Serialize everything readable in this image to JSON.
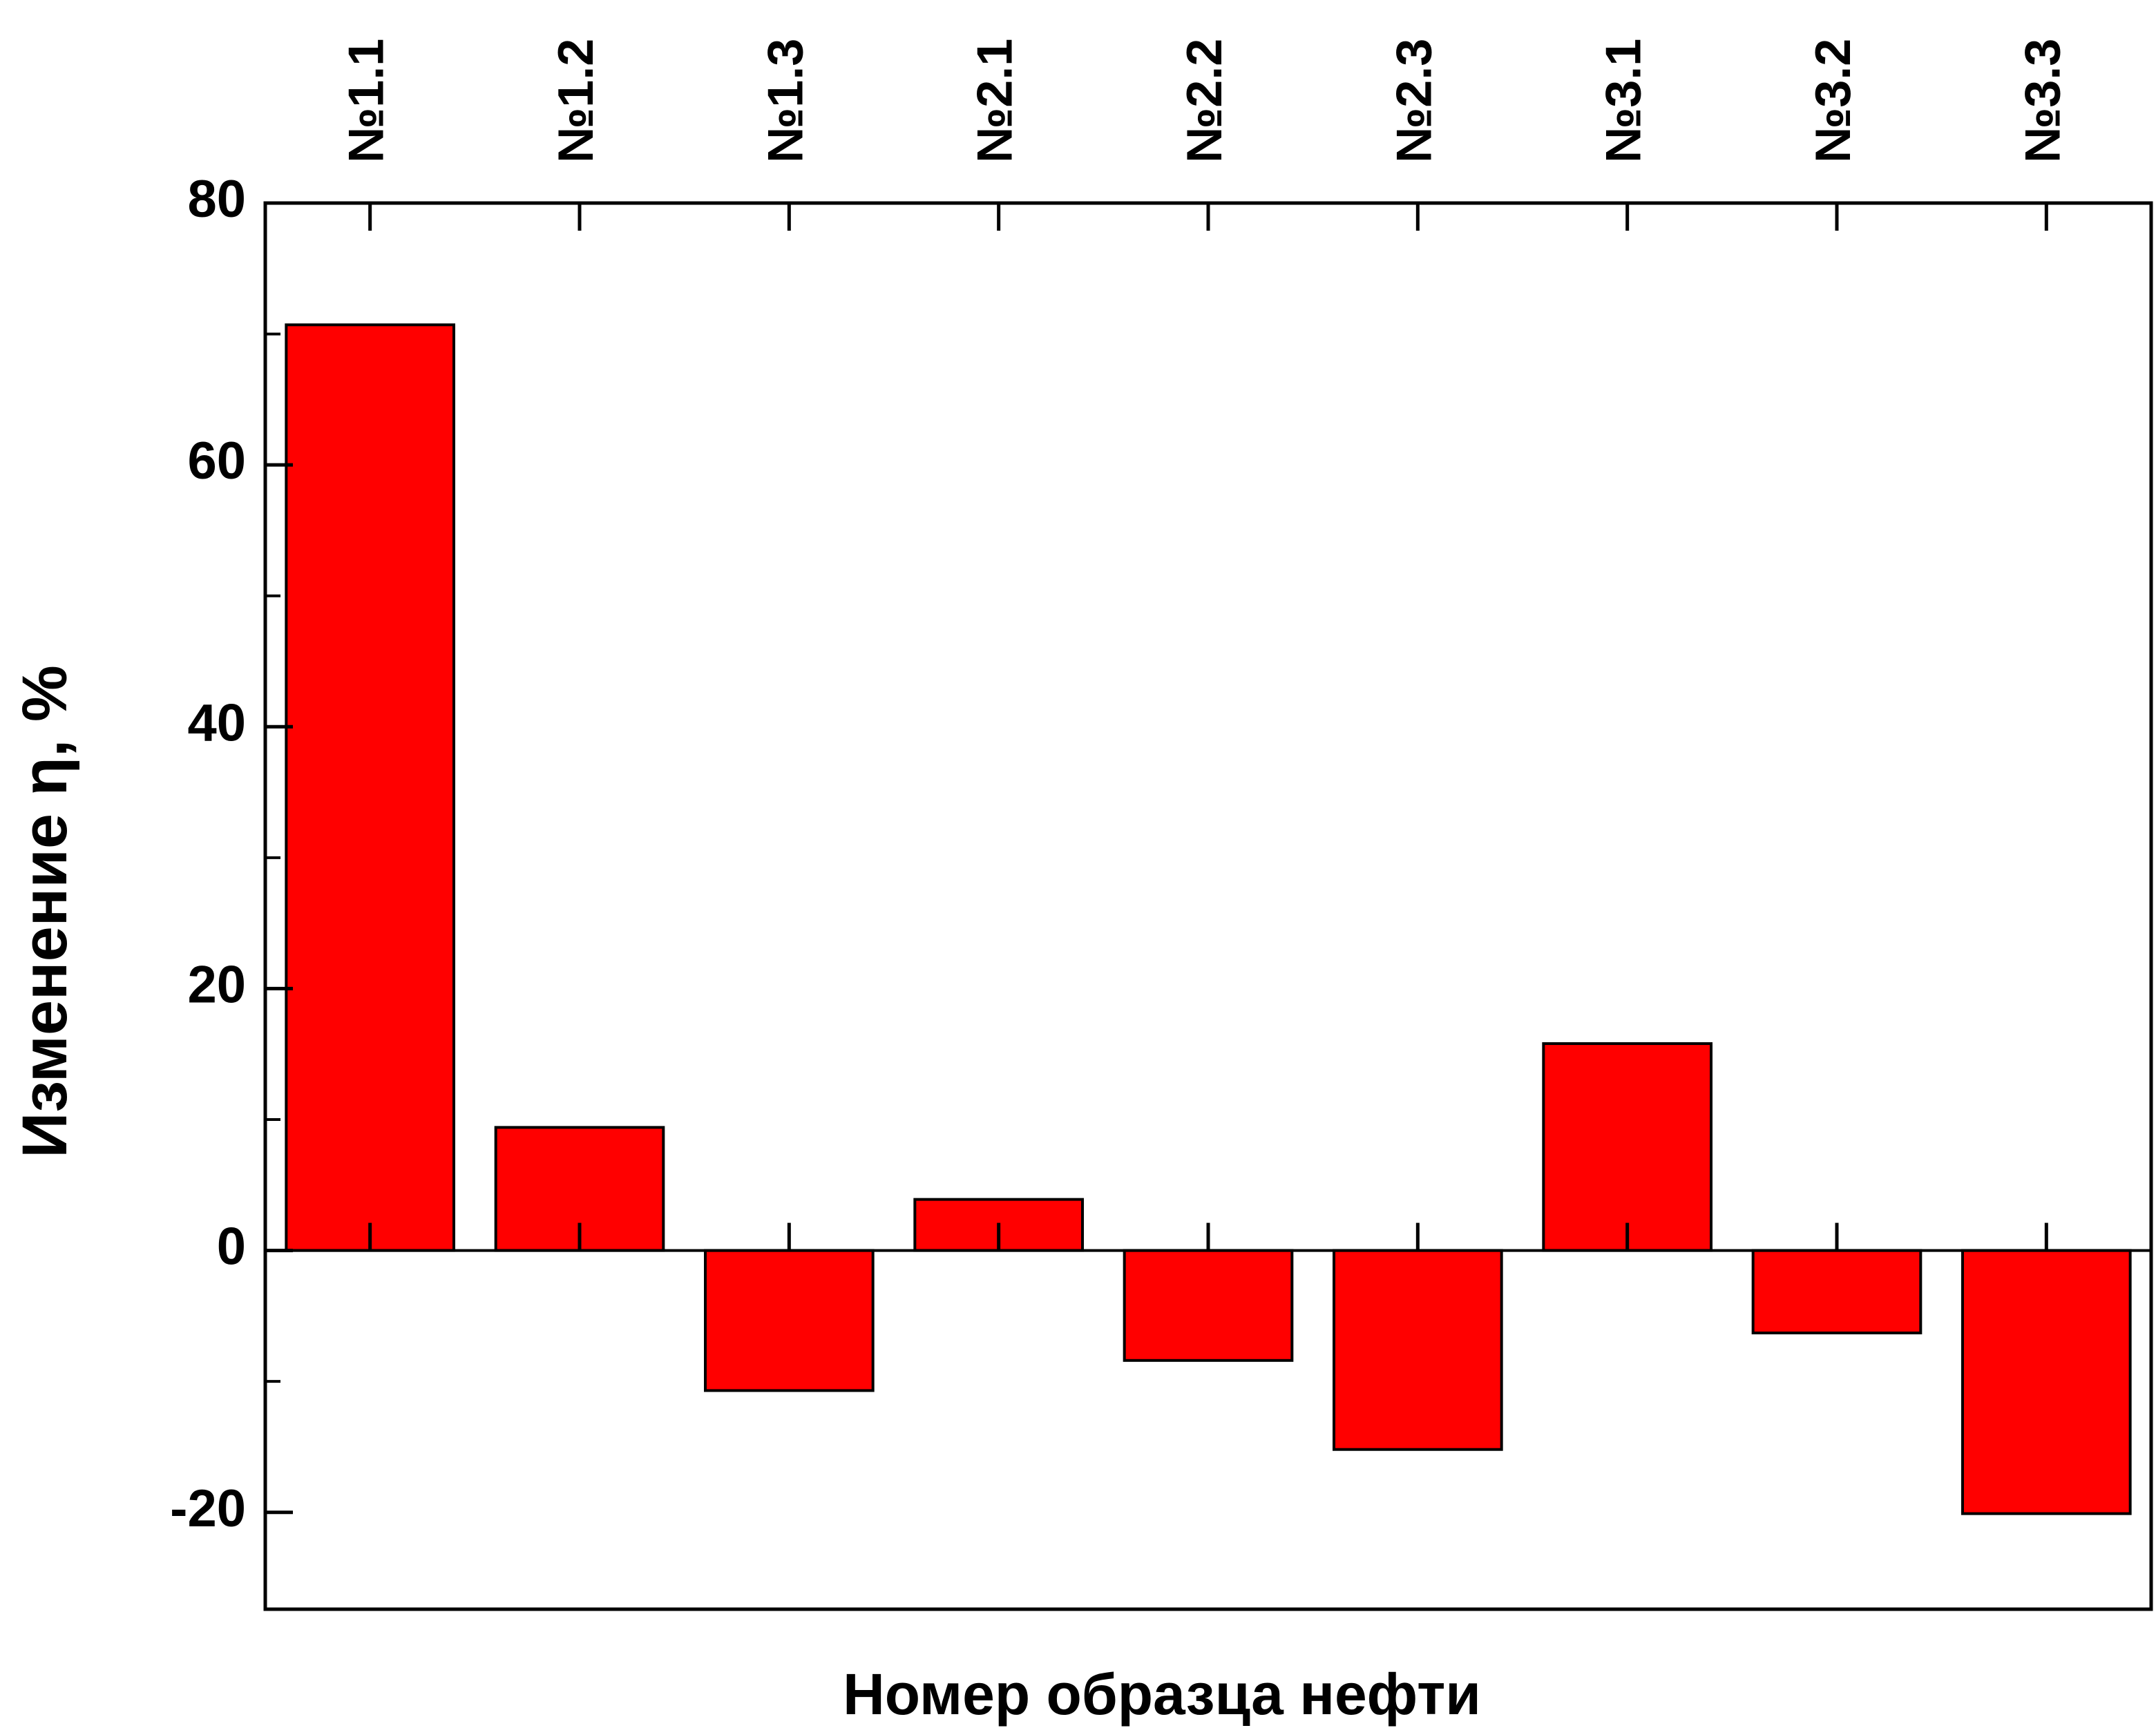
{
  "chart_data": {
    "type": "bar",
    "xlabel": "Номер образца нефти",
    "ylabel": "Изменение η, %",
    "categories": [
      "№1.1",
      "№1.2",
      "№1.3",
      "№2.1",
      "№2.2",
      "№2.3",
      "№3.1",
      "№3.2",
      "№3.3"
    ],
    "values": [
      70.7,
      9.4,
      -10.7,
      3.9,
      -8.4,
      -15.2,
      15.8,
      -6.3,
      -20.1
    ],
    "color": "#ff0000",
    "ylim": [
      -27.4,
      80
    ],
    "yticks": [
      -20,
      0,
      20,
      40,
      60,
      80
    ],
    "yticks_minor": [
      -10,
      10,
      30,
      50,
      70
    ]
  }
}
